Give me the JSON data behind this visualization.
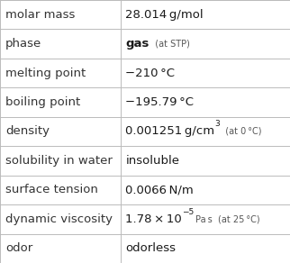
{
  "rows": [
    {
      "label": "molar mass",
      "value_parts": [
        {
          "text": "28.014 g/mol",
          "size": 9.5,
          "color": "#1a1a1a",
          "bold": false,
          "sup": false
        }
      ]
    },
    {
      "label": "phase",
      "value_parts": [
        {
          "text": "gas",
          "size": 9.5,
          "color": "#1a1a1a",
          "bold": true,
          "sup": false
        },
        {
          "text": "  (at STP)",
          "size": 7.0,
          "color": "#555555",
          "bold": false,
          "sup": false
        }
      ]
    },
    {
      "label": "melting point",
      "value_parts": [
        {
          "text": "−210 °C",
          "size": 9.5,
          "color": "#1a1a1a",
          "bold": false,
          "sup": false
        }
      ]
    },
    {
      "label": "boiling point",
      "value_parts": [
        {
          "text": "−195.79 °C",
          "size": 9.5,
          "color": "#1a1a1a",
          "bold": false,
          "sup": false
        }
      ]
    },
    {
      "label": "density",
      "value_parts": [
        {
          "text": "0.001251 g/cm",
          "size": 9.5,
          "color": "#1a1a1a",
          "bold": false,
          "sup": false
        },
        {
          "text": "3",
          "size": 6.5,
          "color": "#1a1a1a",
          "bold": false,
          "sup": true
        },
        {
          "text": "  (at 0 °C)",
          "size": 7.0,
          "color": "#555555",
          "bold": false,
          "sup": false
        }
      ]
    },
    {
      "label": "solubility in water",
      "value_parts": [
        {
          "text": "insoluble",
          "size": 9.5,
          "color": "#1a1a1a",
          "bold": false,
          "sup": false
        }
      ]
    },
    {
      "label": "surface tension",
      "value_parts": [
        {
          "text": "0.0066 N/m",
          "size": 9.5,
          "color": "#1a1a1a",
          "bold": false,
          "sup": false
        }
      ]
    },
    {
      "label": "dynamic viscosity",
      "value_parts": [
        {
          "text": "1.78 × 10",
          "size": 9.5,
          "color": "#1a1a1a",
          "bold": false,
          "sup": false
        },
        {
          "text": "−5",
          "size": 6.5,
          "color": "#1a1a1a",
          "bold": false,
          "sup": true
        },
        {
          "text": " Pa s  (at 25 °C)",
          "size": 7.0,
          "color": "#555555",
          "bold": false,
          "sup": false
        }
      ]
    },
    {
      "label": "odor",
      "value_parts": [
        {
          "text": "odorless",
          "size": 9.5,
          "color": "#1a1a1a",
          "bold": false,
          "sup": false
        }
      ]
    }
  ],
  "col_split": 0.415,
  "bg_color": "#ffffff",
  "label_color": "#333333",
  "grid_color": "#bbbbbb",
  "label_fontsize": 9.5
}
